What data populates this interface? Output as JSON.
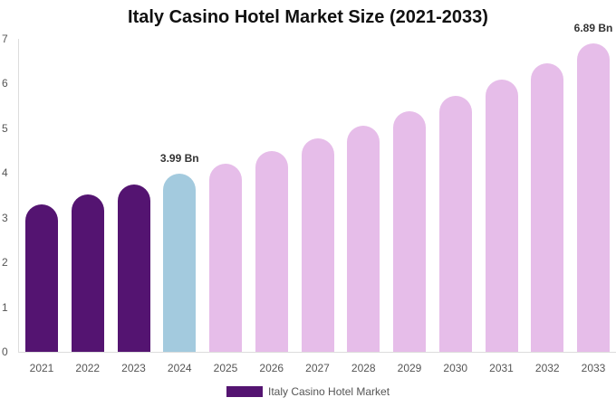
{
  "chart_data": {
    "type": "bar",
    "title": "Italy Casino Hotel Market Size (2021-2033)",
    "xlabel": "",
    "ylabel": "",
    "ylim": [
      0,
      7
    ],
    "yticks": [
      "0",
      "1",
      "2",
      "3",
      "4",
      "5",
      "6",
      "7"
    ],
    "categories": [
      "2021",
      "2022",
      "2023",
      "2024",
      "2025",
      "2026",
      "2027",
      "2028",
      "2029",
      "2030",
      "2031",
      "2032",
      "2033"
    ],
    "series": [
      {
        "name": "Italy Casino Hotel Market",
        "values": [
          3.3,
          3.52,
          3.74,
          3.99,
          4.21,
          4.49,
          4.78,
          5.06,
          5.38,
          5.73,
          6.09,
          6.46,
          6.89
        ]
      }
    ],
    "bar_colors": [
      "#541471",
      "#541471",
      "#541471",
      "#a3cade",
      "#e6bde9",
      "#e6bde9",
      "#e6bde9",
      "#e6bde9",
      "#e6bde9",
      "#e6bde9",
      "#e6bde9",
      "#e6bde9",
      "#e6bde9"
    ],
    "annotations": [
      {
        "index": 3,
        "text": "3.99 Bn"
      },
      {
        "index": 12,
        "text": "6.89 Bn"
      }
    ],
    "legend": {
      "label": "Italy Casino Hotel Market",
      "color": "#541471",
      "position": "bottom"
    },
    "grid": false
  }
}
